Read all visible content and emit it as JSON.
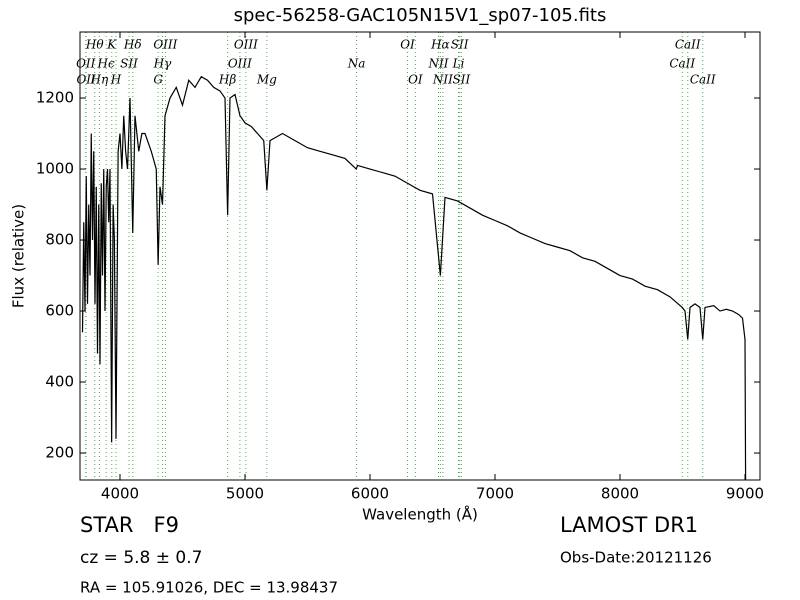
{
  "chart_data": {
    "type": "line",
    "title": "spec-56258-GAC105N15V1_sp07-105.fits",
    "x_label": "Wavelength (Å)",
    "y_label": "Flux (relative)",
    "color": "#000000",
    "xlim": [
      3680,
      9120
    ],
    "ylim": [
      124,
      1386
    ],
    "xticks": [
      4000,
      5000,
      6000,
      7000,
      8000,
      9000
    ],
    "yticks": [
      200,
      400,
      600,
      800,
      1000,
      1200
    ],
    "x": [
      3700,
      3710,
      3720,
      3730,
      3740,
      3750,
      3760,
      3770,
      3780,
      3790,
      3800,
      3810,
      3820,
      3830,
      3840,
      3850,
      3860,
      3870,
      3880,
      3890,
      3900,
      3910,
      3920,
      3933,
      3945,
      3955,
      3968,
      3985,
      4000,
      4015,
      4030,
      4045,
      4060,
      4080,
      4102,
      4120,
      4150,
      4175,
      4200,
      4250,
      4290,
      4305,
      4320,
      4340,
      4360,
      4400,
      4450,
      4500,
      4550,
      4600,
      4650,
      4700,
      4750,
      4800,
      4840,
      4861,
      4880,
      4920,
      4960,
      5000,
      5050,
      5100,
      5150,
      5175,
      5200,
      5300,
      5400,
      5500,
      5600,
      5700,
      5800,
      5890,
      5900,
      6000,
      6100,
      6200,
      6300,
      6400,
      6500,
      6563,
      6600,
      6700,
      6800,
      6900,
      7000,
      7100,
      7200,
      7300,
      7400,
      7500,
      7600,
      7700,
      7800,
      7900,
      8000,
      8100,
      8200,
      8300,
      8400,
      8498,
      8520,
      8542,
      8560,
      8600,
      8640,
      8662,
      8680,
      8750,
      8800,
      8850,
      8900,
      8950,
      8980,
      9000,
      9005
    ],
    "values": [
      540,
      850,
      600,
      980,
      620,
      900,
      700,
      1100,
      800,
      1050,
      620,
      950,
      480,
      900,
      450,
      960,
      700,
      1000,
      600,
      950,
      1000,
      850,
      1000,
      230,
      900,
      800,
      240,
      1050,
      1100,
      1000,
      1150,
      1050,
      1000,
      1200,
      820,
      1150,
      1050,
      1100,
      1100,
      1050,
      1000,
      730,
      950,
      900,
      1150,
      1200,
      1230,
      1180,
      1250,
      1230,
      1260,
      1250,
      1230,
      1220,
      1200,
      870,
      1200,
      1210,
      1150,
      1130,
      1120,
      1100,
      1080,
      940,
      1080,
      1100,
      1080,
      1060,
      1050,
      1040,
      1030,
      1000,
      1010,
      1000,
      990,
      980,
      960,
      940,
      930,
      700,
      920,
      910,
      890,
      870,
      855,
      840,
      820,
      805,
      790,
      780,
      770,
      750,
      740,
      720,
      700,
      690,
      670,
      660,
      640,
      610,
      600,
      520,
      610,
      620,
      610,
      520,
      610,
      615,
      600,
      605,
      600,
      590,
      580,
      520,
      100
    ],
    "lines": [
      {
        "label": "OII",
        "wavelength": 3726
      },
      {
        "label": "OII",
        "wavelength": 3729
      },
      {
        "label": "Hθ",
        "wavelength": 3798
      },
      {
        "label": "Hη",
        "wavelength": 3835
      },
      {
        "label": "Hϵ",
        "wavelength": 3889
      },
      {
        "label": "K",
        "wavelength": 3934
      },
      {
        "label": "H",
        "wavelength": 3968
      },
      {
        "label": "SII",
        "wavelength": 4072
      },
      {
        "label": "Hδ",
        "wavelength": 4102
      },
      {
        "label": "G",
        "wavelength": 4305
      },
      {
        "label": "Hγ",
        "wavelength": 4340
      },
      {
        "label": "OIII",
        "wavelength": 4363
      },
      {
        "label": "Hβ",
        "wavelength": 4861
      },
      {
        "label": "OIII",
        "wavelength": 4959
      },
      {
        "label": "OIII",
        "wavelength": 5007
      },
      {
        "label": "Mg",
        "wavelength": 5175
      },
      {
        "label": "Na",
        "wavelength": 5893
      },
      {
        "label": "OI",
        "wavelength": 6300
      },
      {
        "label": "OI",
        "wavelength": 6363
      },
      {
        "label": "NII",
        "wavelength": 6548
      },
      {
        "label": "Hα",
        "wavelength": 6563
      },
      {
        "label": "NII",
        "wavelength": 6583
      },
      {
        "label": "Li",
        "wavelength": 6708
      },
      {
        "label": "SII",
        "wavelength": 6717
      },
      {
        "label": "SII",
        "wavelength": 6731
      },
      {
        "label": "CaII",
        "wavelength": 8498
      },
      {
        "label": "CaII",
        "wavelength": 8542
      },
      {
        "label": "CaII",
        "wavelength": 8662
      }
    ]
  },
  "footer": {
    "star": "STAR   F9",
    "cz": "cz = 5.8 ± 0.7",
    "coords": "RA = 105.91026, DEC = 13.98437",
    "survey": "LAMOST DR1",
    "obs_date": "Obs-Date:20121126"
  }
}
